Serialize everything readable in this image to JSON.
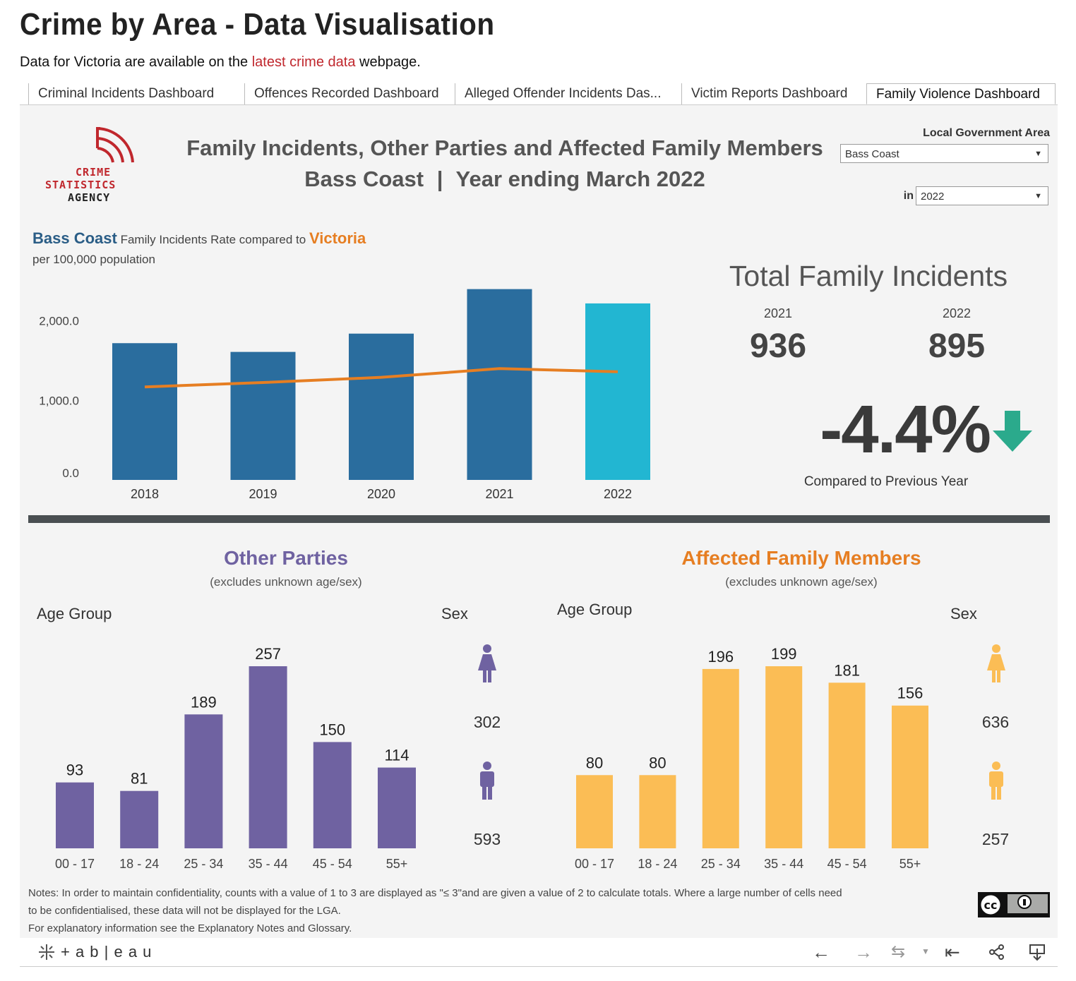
{
  "page": {
    "title": "Crime by Area - Data Visualisation",
    "subtitle_before": "Data for Victoria are available on the ",
    "subtitle_link": "latest crime data",
    "subtitle_after": " webpage."
  },
  "tabs": [
    {
      "label": "Criminal Incidents Dashboard"
    },
    {
      "label": "Offences Recorded Dashboard"
    },
    {
      "label": "Alleged Offender Incidents Das..."
    },
    {
      "label": "Victim Reports Dashboard"
    },
    {
      "label": "Family Violence Dashboard"
    }
  ],
  "logo": {
    "line1": "CRIME",
    "line2": "STATISTICS",
    "line3": "AGENCY"
  },
  "dashboard": {
    "title_line1": "Family Incidents, Other Parties and Affected Family Members",
    "title_lga": "Bass Coast",
    "title_sep": "|",
    "title_period": "Year ending March 2022"
  },
  "filters": {
    "lga_label": "Local Government Area",
    "lga_value": "Bass Coast",
    "year_label": "in",
    "year_value": "2022"
  },
  "rate_chart": {
    "area": "Bass Coast",
    "mid_text": " Family Incidents Rate compared to ",
    "compare": "Victoria",
    "sub": "per 100,000 population"
  },
  "totals": {
    "heading": "Total Family Incidents",
    "prev_year": "2021",
    "prev_value": "936",
    "curr_year": "2022",
    "curr_value": "895",
    "change": "-4.4%",
    "change_label": "Compared to Previous Year"
  },
  "other_parties": {
    "title": "Other Parties",
    "sub": "(excludes unknown age/sex)",
    "age_label": "Age Group",
    "sex_label": "Sex",
    "female": "302",
    "male": "593"
  },
  "affected": {
    "title": "Affected Family Members",
    "sub": "(excludes unknown age/sex)",
    "age_label": "Age Group",
    "sex_label": "Sex",
    "female": "636",
    "male": "257"
  },
  "notes": {
    "line1": "Notes:  In order to maintain confidentiality, counts with a value of 1 to 3  are displayed as \"≤ 3\"and are given a value of 2 to calculate totals. Where a large number of cells need",
    "line2": "to be confidentialised, these data will not be displayed for the LGA.",
    "line3": "For explanatory information see the Explanatory Notes and Glossary."
  },
  "toolbar": {
    "brand": "+ a b | e a u"
  },
  "colors": {
    "bar_dark": "#2a6d9e",
    "bar_light": "#22b6d2",
    "line": "#e67e22",
    "purple": "#6f62a1",
    "yellow": "#fbbd55",
    "green": "#2baa8c",
    "blue_text": "#2a5d86",
    "orange_text": "#e67e22"
  },
  "chart_data": [
    {
      "type": "bar",
      "title": "Bass Coast Family Incidents Rate compared to Victoria",
      "ylabel": "per 100,000 population",
      "categories": [
        "2018",
        "2019",
        "2020",
        "2021",
        "2022"
      ],
      "series": [
        {
          "name": "Bass Coast",
          "kind": "bar",
          "values": [
            1720,
            1610,
            1840,
            2400,
            2220
          ]
        },
        {
          "name": "Victoria",
          "kind": "line",
          "values": [
            1170,
            1225,
            1290,
            1400,
            1360
          ]
        }
      ],
      "yticks": [
        "0.0",
        "1,000.0",
        "2,000.0"
      ],
      "ylim": [
        0,
        2450
      ]
    },
    {
      "type": "bar",
      "title": "Other Parties",
      "xlabel": "Age Group",
      "categories": [
        "00 - 17",
        "18 - 24",
        "25 - 34",
        "35 - 44",
        "45 - 54",
        "55+"
      ],
      "values": [
        93,
        81,
        189,
        257,
        150,
        114
      ],
      "ylim": [
        0,
        257
      ]
    },
    {
      "type": "bar",
      "title": "Affected Family Members",
      "xlabel": "Age Group",
      "categories": [
        "00 - 17",
        "18 - 24",
        "25 - 34",
        "35 - 44",
        "45 - 54",
        "55+"
      ],
      "values": [
        80,
        80,
        196,
        199,
        181,
        156
      ],
      "ylim": [
        0,
        199
      ]
    }
  ]
}
